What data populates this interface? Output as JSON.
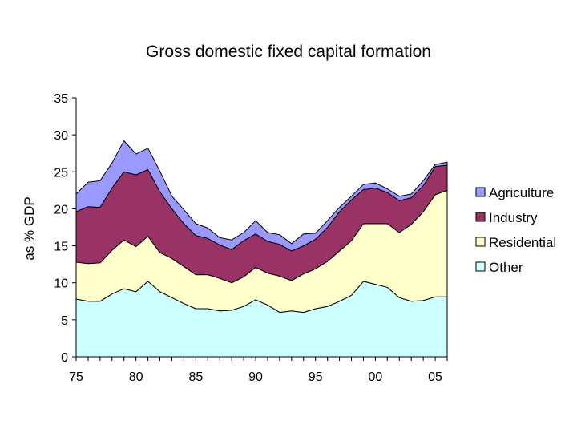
{
  "chart_data": {
    "type": "area",
    "stacked": true,
    "title": "Gross domestic fixed capital formation",
    "xlabel": "",
    "ylabel": "as % GDP",
    "xlim": [
      1975,
      2006
    ],
    "ylim": [
      0,
      35
    ],
    "yticks": [
      0,
      5,
      10,
      15,
      20,
      25,
      30,
      35
    ],
    "xticks": [
      {
        "value": 1975,
        "label": "75"
      },
      {
        "value": 1980,
        "label": "80"
      },
      {
        "value": 1985,
        "label": "85"
      },
      {
        "value": 1990,
        "label": "90"
      },
      {
        "value": 1995,
        "label": "95"
      },
      {
        "value": 2000,
        "label": "00"
      },
      {
        "value": 2005,
        "label": "05"
      }
    ],
    "x": [
      1975,
      1976,
      1977,
      1978,
      1979,
      1980,
      1981,
      1982,
      1983,
      1984,
      1985,
      1986,
      1987,
      1988,
      1989,
      1990,
      1991,
      1992,
      1993,
      1994,
      1995,
      1996,
      1997,
      1998,
      1999,
      2000,
      2001,
      2002,
      2003,
      2004,
      2005,
      2006
    ],
    "series": [
      {
        "name": "Other",
        "color": "#ccffff",
        "values": [
          7.8,
          7.5,
          7.5,
          8.5,
          9.2,
          8.8,
          10.2,
          8.8,
          8.0,
          7.2,
          6.5,
          6.5,
          6.2,
          6.3,
          6.8,
          7.7,
          7.0,
          6.0,
          6.2,
          6.0,
          6.5,
          6.8,
          7.5,
          8.3,
          10.2,
          9.8,
          9.4,
          8.0,
          7.5,
          7.6,
          8.1,
          8.1
        ]
      },
      {
        "name": "Residential",
        "color": "#ffffcc",
        "values": [
          5.0,
          5.1,
          5.2,
          5.9,
          6.6,
          6.1,
          6.1,
          5.3,
          5.3,
          5.0,
          4.6,
          4.6,
          4.4,
          3.7,
          4.0,
          4.4,
          4.3,
          4.9,
          4.1,
          5.2,
          5.4,
          6.1,
          6.8,
          7.4,
          7.8,
          8.2,
          8.6,
          8.8,
          10.4,
          12.0,
          13.8,
          14.4
        ]
      },
      {
        "name": "Industry",
        "color": "#993366",
        "values": [
          6.8,
          7.7,
          7.5,
          8.4,
          9.2,
          9.7,
          9.0,
          8.2,
          6.7,
          5.8,
          5.3,
          4.9,
          4.5,
          4.5,
          4.9,
          4.5,
          4.3,
          4.3,
          4.0,
          3.8,
          4.0,
          4.6,
          5.3,
          5.5,
          4.6,
          4.8,
          4.2,
          4.3,
          3.6,
          3.5,
          3.8,
          3.4
        ]
      },
      {
        "name": "Agriculture",
        "color": "#9999ff",
        "values": [
          2.4,
          3.3,
          3.6,
          3.4,
          4.2,
          2.8,
          2.9,
          2.8,
          1.7,
          1.9,
          1.6,
          1.4,
          1.0,
          1.3,
          1.1,
          1.8,
          1.2,
          1.3,
          1.0,
          1.6,
          0.8,
          0.9,
          0.6,
          0.5,
          0.7,
          0.7,
          0.5,
          0.6,
          0.5,
          0.7,
          0.3,
          0.4
        ]
      }
    ],
    "legend": {
      "position": "right",
      "order": [
        "Agriculture",
        "Industry",
        "Residential",
        "Other"
      ]
    },
    "grid": false
  }
}
